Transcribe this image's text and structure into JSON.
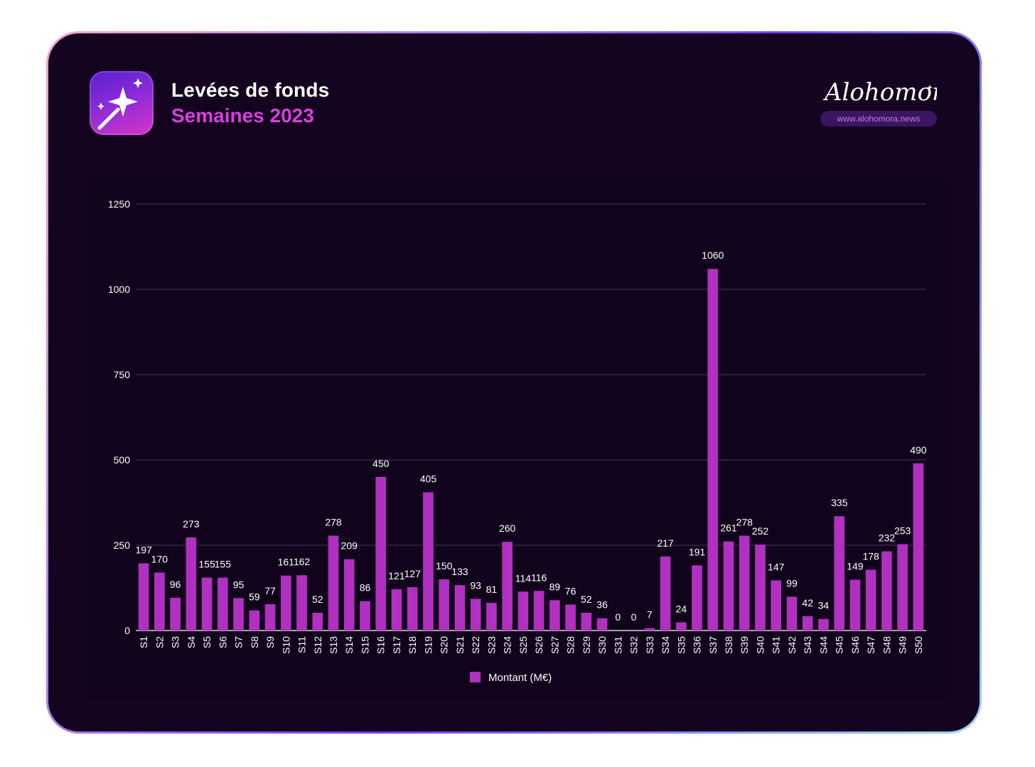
{
  "header": {
    "title": "Levées de fonds",
    "subtitle": "Semaines 2023"
  },
  "brand": {
    "name": "Alohomora",
    "url": "www.alohomora.news"
  },
  "icons": {
    "app_icon": "magic-wand-sparkle-icon"
  },
  "colors": {
    "bar": "#b030c0",
    "title": "#ffffff",
    "subtitle": "#d93ee0",
    "background": "#14041f"
  },
  "chart_data": {
    "type": "bar",
    "categories": [
      "S1",
      "S2",
      "S3",
      "S4",
      "S5",
      "S6",
      "S7",
      "S8",
      "S9",
      "S10",
      "S11",
      "S12",
      "S13",
      "S14",
      "S15",
      "S16",
      "S17",
      "S18",
      "S19",
      "S20",
      "S21",
      "S22",
      "S23",
      "S24",
      "S25",
      "S26",
      "S27",
      "S28",
      "S29",
      "S30",
      "S31",
      "S32",
      "S33",
      "S34",
      "S35",
      "S36",
      "S37",
      "S38",
      "S39",
      "S40",
      "S41",
      "S42",
      "S43",
      "S44",
      "S45",
      "S46",
      "S47",
      "S48",
      "S49",
      "S50"
    ],
    "series": [
      {
        "name": "Montant (M€)",
        "values": [
          197,
          170,
          96,
          273,
          155,
          155,
          95,
          59,
          77,
          161,
          162,
          52,
          278,
          209,
          86,
          450,
          121,
          127,
          405,
          150,
          133,
          93,
          81,
          260,
          114,
          116,
          89,
          76,
          52,
          36,
          0,
          0,
          7,
          217,
          24,
          191,
          1060,
          261,
          278,
          252,
          147,
          99,
          42,
          34,
          335,
          149,
          178,
          232,
          253,
          490
        ]
      }
    ],
    "ylim": [
      0,
      1250
    ],
    "yticks": [
      0,
      250,
      500,
      750,
      1000,
      1250
    ],
    "grid": true,
    "legend": "bottom"
  }
}
